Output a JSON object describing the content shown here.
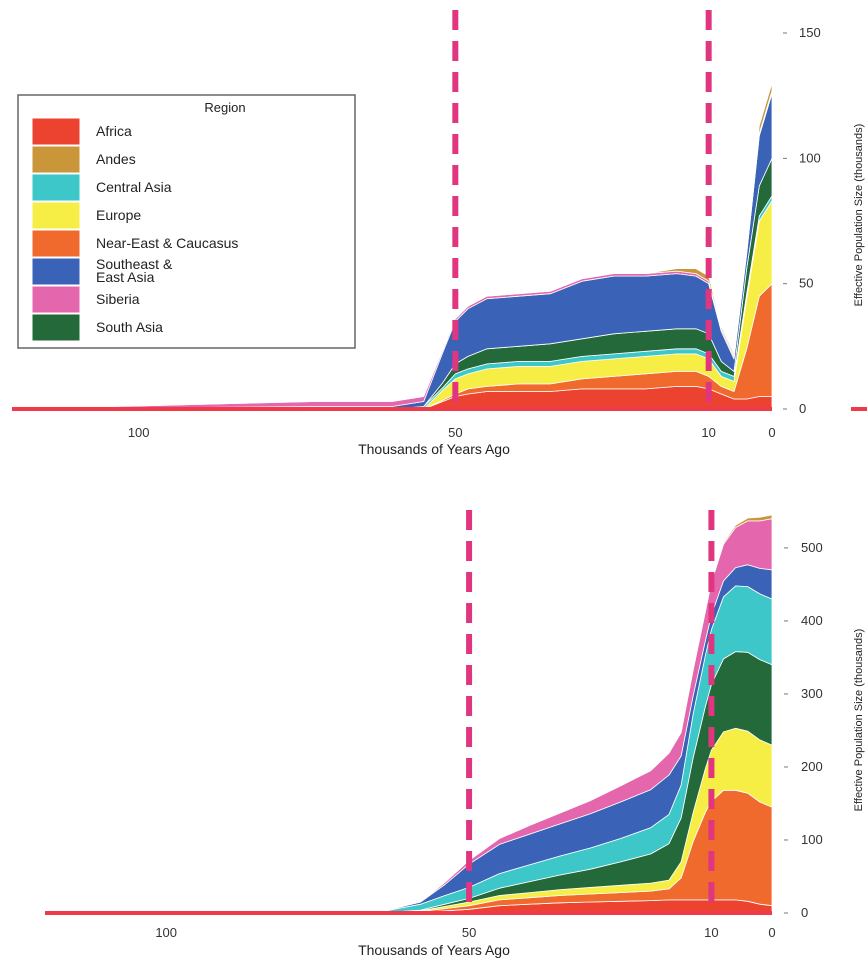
{
  "colors": {
    "Africa": "#ec4230",
    "Andes": "#c9963a",
    "Central Asia": "#3ec7c9",
    "Europe": "#f6ee45",
    "Near-East & Caucasus": "#f06a2d",
    "Southeast & East Asia": "#3a63b8",
    "Siberia": "#e467ad",
    "South Asia": "#23693a",
    "baseline": "#f03a4a",
    "marker": "#e0357f"
  },
  "legend": {
    "title": "Region",
    "items": [
      {
        "key": "Africa",
        "label": "Africa"
      },
      {
        "key": "Andes",
        "label": "Andes"
      },
      {
        "key": "Central Asia",
        "label": "Central Asia"
      },
      {
        "key": "Europe",
        "label": "Europe"
      },
      {
        "key": "Near-East & Caucasus",
        "label": "Near-East & Caucasus"
      },
      {
        "key": "Southeast & East Asia",
        "label": "Southeast &\nEast Asia"
      },
      {
        "key": "Siberia",
        "label": "Siberia"
      },
      {
        "key": "South Asia",
        "label": "South Asia"
      }
    ]
  },
  "chart_data": [
    {
      "type": "area",
      "stacked": true,
      "xlabel": "Thousands of Years Ago",
      "ylabel": "Effective Population Size (thousands)",
      "xlim": [
        120,
        0
      ],
      "ylim": [
        0,
        150
      ],
      "xticks": [
        100,
        50,
        10,
        0
      ],
      "yticks": [
        0,
        50,
        100,
        150
      ],
      "markers": [
        50,
        10
      ],
      "x": [
        120,
        72,
        60,
        55,
        52,
        50,
        48,
        45,
        40,
        35,
        30,
        25,
        20,
        15,
        12,
        10,
        8,
        6,
        4,
        2,
        0
      ],
      "series": [
        {
          "name": "Africa",
          "values": [
            0,
            0,
            0,
            0,
            3,
            5,
            6,
            7,
            7,
            7,
            8,
            8,
            8,
            9,
            9,
            8,
            6,
            4,
            4,
            5,
            5
          ]
        },
        {
          "name": "Near-East & Caucasus",
          "values": [
            0,
            0,
            0,
            0,
            0.5,
            1,
            2,
            2,
            3,
            3,
            4,
            5,
            6,
            6,
            6,
            5,
            3,
            3,
            20,
            40,
            45
          ]
        },
        {
          "name": "Europe",
          "values": [
            0,
            0,
            0,
            0,
            4,
            6,
            6,
            7,
            7,
            7,
            7,
            7,
            7,
            7,
            7,
            7,
            4,
            4,
            20,
            30,
            33
          ]
        },
        {
          "name": "Central Asia",
          "values": [
            0,
            0,
            0,
            1,
            1,
            2,
            2,
            2,
            2,
            2,
            2,
            2,
            2,
            2,
            2,
            2,
            2,
            2,
            2,
            2,
            2
          ]
        },
        {
          "name": "South Asia",
          "values": [
            0,
            0,
            0,
            0,
            2,
            4,
            5,
            6,
            6,
            7,
            7,
            8,
            8,
            8,
            8,
            8,
            4,
            2,
            10,
            12,
            15
          ]
        },
        {
          "name": "Southeast & East Asia",
          "values": [
            0,
            1,
            1,
            2,
            12,
            17,
            19,
            20,
            20,
            20,
            23,
            23,
            22,
            22,
            21,
            20,
            12,
            5,
            6,
            20,
            26
          ]
        },
        {
          "name": "Siberia",
          "values": [
            0,
            2,
            2,
            2,
            1,
            1,
            1,
            1,
            1,
            1,
            1,
            1,
            1,
            1,
            1,
            1,
            1,
            1,
            1,
            1,
            1
          ]
        },
        {
          "name": "Andes",
          "values": [
            0,
            0,
            0,
            0,
            0,
            0,
            0,
            0,
            0,
            0,
            0,
            0,
            0,
            1,
            2,
            2,
            1,
            1,
            2,
            3,
            3
          ]
        }
      ]
    },
    {
      "type": "area",
      "stacked": true,
      "xlabel": "Thousands of Years Ago",
      "ylabel": "Effective Population Size (thousands)",
      "xlim": [
        120,
        0
      ],
      "ylim": [
        0,
        530
      ],
      "xticks": [
        100,
        50,
        10,
        0
      ],
      "yticks": [
        0,
        100,
        200,
        300,
        400,
        500
      ],
      "markers": [
        50,
        10
      ],
      "x": [
        120,
        75,
        65,
        58,
        54,
        50,
        45,
        40,
        35,
        30,
        25,
        20,
        17,
        15,
        13,
        11,
        10,
        8,
        6,
        4,
        2,
        0
      ],
      "series": [
        {
          "name": "Africa",
          "values": [
            0,
            0,
            0,
            1,
            3,
            5,
            10,
            12,
            14,
            15,
            16,
            17,
            18,
            18,
            18,
            18,
            18,
            18,
            18,
            16,
            12,
            10
          ]
        },
        {
          "name": "Near-East & Caucasus",
          "values": [
            0,
            0,
            0,
            1,
            3,
            5,
            8,
            9,
            10,
            11,
            12,
            13,
            15,
            30,
            80,
            120,
            135,
            150,
            150,
            148,
            140,
            135
          ]
        },
        {
          "name": "Europe",
          "values": [
            0,
            0,
            0,
            1,
            3,
            5,
            6,
            7,
            8,
            9,
            10,
            11,
            12,
            22,
            40,
            60,
            70,
            80,
            85,
            85,
            85,
            85
          ]
        },
        {
          "name": "South Asia",
          "values": [
            0,
            0,
            0,
            1,
            3,
            5,
            10,
            15,
            20,
            25,
            32,
            40,
            50,
            60,
            75,
            85,
            90,
            100,
            105,
            108,
            110,
            110
          ]
        },
        {
          "name": "Central Asia",
          "values": [
            0,
            0,
            1,
            8,
            12,
            15,
            20,
            23,
            26,
            29,
            32,
            36,
            40,
            45,
            60,
            70,
            75,
            85,
            90,
            90,
            90,
            90
          ]
        },
        {
          "name": "Southeast & East Asia",
          "values": [
            0,
            0,
            0,
            3,
            15,
            32,
            40,
            42,
            44,
            47,
            50,
            52,
            54,
            40,
            25,
            20,
            20,
            22,
            25,
            30,
            35,
            40
          ]
        },
        {
          "name": "Siberia",
          "values": [
            0,
            0,
            0,
            0,
            3,
            5,
            8,
            12,
            15,
            18,
            22,
            26,
            30,
            32,
            35,
            40,
            45,
            50,
            55,
            60,
            65,
            70
          ]
        },
        {
          "name": "Andes",
          "values": [
            0,
            0,
            0,
            0,
            0,
            0,
            0,
            0,
            0,
            0,
            0,
            0,
            0,
            0,
            0,
            1,
            1,
            2,
            3,
            4,
            5,
            5
          ]
        }
      ]
    }
  ]
}
